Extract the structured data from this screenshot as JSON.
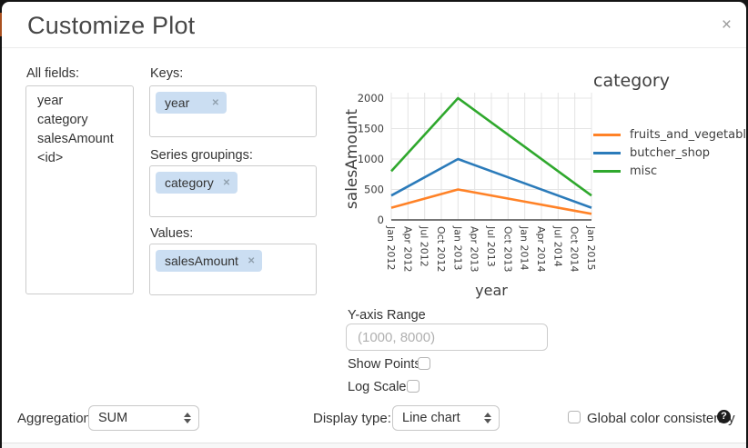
{
  "window": {
    "title": "Customize Plot",
    "close_icon": "×"
  },
  "fields_panel": {
    "label": "All fields:",
    "items": [
      "year",
      "category",
      "salesAmount",
      "<id>"
    ]
  },
  "encoding_panels": {
    "keys": {
      "label": "Keys:",
      "tags": [
        {
          "text": "year",
          "remove_icon": "✕"
        }
      ]
    },
    "series_groupings": {
      "label": "Series groupings:",
      "tags": [
        {
          "text": "category",
          "remove_icon": "✕"
        }
      ]
    },
    "values": {
      "label": "Values:",
      "tags": [
        {
          "text": "salesAmount",
          "remove_icon": "✕"
        }
      ]
    }
  },
  "chart_data": {
    "type": "line",
    "xlabel": "year",
    "ylabel": "salesAmount",
    "legend_title": "category",
    "legend_position": "right",
    "grid": true,
    "ylim": [
      0,
      2000
    ],
    "y_ticks": [
      0,
      500,
      1000,
      1500,
      2000
    ],
    "x_ticks": [
      "Jan 2012",
      "Apr 2012",
      "Jul 2012",
      "Oct 2012",
      "Jan 2013",
      "Apr 2013",
      "Jul 2013",
      "Oct 2013",
      "Jan 2014",
      "Apr 2014",
      "Jul 2014",
      "Oct 2014",
      "Jan 2015"
    ],
    "series": [
      {
        "name": "fruits_and_vegetables",
        "color": "#ff8227",
        "points": [
          {
            "x": "Jan 2012",
            "y": 200
          },
          {
            "x": "Jan 2013",
            "y": 500
          },
          {
            "x": "Jan 2014",
            "y": 300
          },
          {
            "x": "Jan 2015",
            "y": 100
          }
        ]
      },
      {
        "name": "butcher_shop",
        "color": "#2b7bba",
        "points": [
          {
            "x": "Jan 2012",
            "y": 400
          },
          {
            "x": "Jan 2013",
            "y": 1000
          },
          {
            "x": "Jan 2014",
            "y": 600
          },
          {
            "x": "Jan 2015",
            "y": 200
          }
        ]
      },
      {
        "name": "misc",
        "color": "#2fa82d",
        "points": [
          {
            "x": "Jan 2012",
            "y": 800
          },
          {
            "x": "Jan 2013",
            "y": 2000
          },
          {
            "x": "Jan 2014",
            "y": 1200
          },
          {
            "x": "Jan 2015",
            "y": 400
          }
        ]
      }
    ]
  },
  "controls": {
    "y_axis_range": {
      "label": "Y-axis Range",
      "placeholder": "(1000, 8000)",
      "value": ""
    },
    "show_points": {
      "label": "Show Points",
      "checked": false
    },
    "log_scale": {
      "label": "Log Scale",
      "checked": false
    },
    "aggregation": {
      "label": "Aggregation:",
      "selected": "SUM"
    },
    "display_type": {
      "label": "Display type:",
      "selected": "Line chart"
    },
    "global_color_consistency": {
      "label": "Global color consistency",
      "checked": false,
      "help_icon": "?"
    }
  }
}
